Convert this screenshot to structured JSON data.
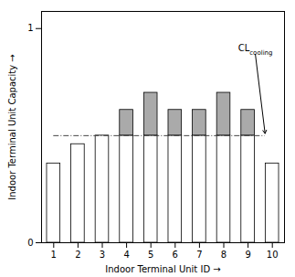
{
  "chart_data": {
    "type": "bar",
    "xlabel": "Indoor Terminal Unit ID",
    "ylabel": "Indoor Terminal Unit Capacity",
    "categories": [
      1,
      2,
      3,
      4,
      5,
      6,
      7,
      8,
      9,
      10
    ],
    "series": [
      {
        "color": "#ffffff",
        "values": [
          0.37,
          0.46,
          0.5,
          0.5,
          0.5,
          0.5,
          0.5,
          0.5,
          0.5,
          0.37
        ]
      },
      {
        "color": "#aaaaaa",
        "values": [
          0.0,
          0.0,
          0.0,
          0.12,
          0.2,
          0.12,
          0.12,
          0.2,
          0.12,
          0.0
        ]
      }
    ],
    "stacked": true,
    "xlim": [
      0.5,
      10.5
    ],
    "ylim": [
      0,
      1.08
    ],
    "yticks": [
      0,
      1
    ],
    "reference_lines": [
      {
        "y": 0.5,
        "color": "#444444",
        "line_style": "dashdot"
      }
    ],
    "annotations": [
      {
        "text": "CL",
        "subscript": "cooling",
        "x": 9.3,
        "y": 0.88,
        "arrow_x": 9.7,
        "arrow_y": 0.51,
        "color": "#000000"
      }
    ]
  }
}
